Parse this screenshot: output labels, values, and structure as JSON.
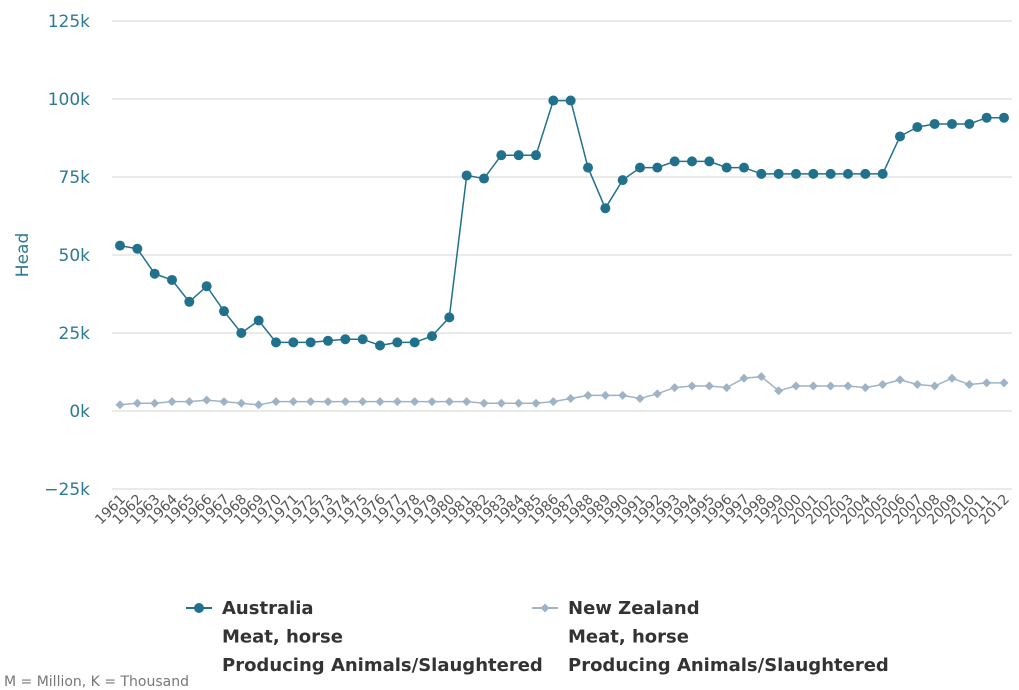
{
  "chart_data": {
    "type": "line",
    "ylabel": "Head",
    "ylim": [
      -25000,
      125000
    ],
    "yticks": [
      {
        "value": -25000,
        "label": "−25k"
      },
      {
        "value": 0,
        "label": "0k"
      },
      {
        "value": 25000,
        "label": "25k"
      },
      {
        "value": 50000,
        "label": "50k"
      },
      {
        "value": 75000,
        "label": "75k"
      },
      {
        "value": 100000,
        "label": "100k"
      },
      {
        "value": 125000,
        "label": "125k"
      }
    ],
    "grid": true,
    "legend_position": "bottom",
    "x": [
      "1961",
      "1962",
      "1963",
      "1964",
      "1965",
      "1966",
      "1967",
      "1968",
      "1969",
      "1970",
      "1971",
      "1972",
      "1973",
      "1974",
      "1975",
      "1976",
      "1977",
      "1978",
      "1979",
      "1980",
      "1981",
      "1982",
      "1983",
      "1984",
      "1985",
      "1986",
      "1987",
      "1988",
      "1989",
      "1990",
      "1991",
      "1992",
      "1993",
      "1994",
      "1995",
      "1996",
      "1997",
      "1998",
      "1999",
      "2000",
      "2001",
      "2002",
      "2003",
      "2004",
      "2005",
      "2006",
      "2007",
      "2008",
      "2009",
      "2010",
      "2011",
      "2012"
    ],
    "series": [
      {
        "name_lines": [
          "Australia",
          "Meat, horse",
          "Producing Animals/Slaughtered"
        ],
        "color": "#21718d",
        "marker": "circle",
        "values": [
          53000,
          52000,
          44000,
          42000,
          35000,
          40000,
          32000,
          25000,
          29000,
          22000,
          22000,
          22000,
          22500,
          23000,
          23000,
          21000,
          22000,
          22000,
          24000,
          30000,
          75500,
          74500,
          82000,
          82000,
          82000,
          99500,
          99500,
          78000,
          65000,
          74000,
          78000,
          78000,
          80000,
          80000,
          80000,
          78000,
          78000,
          76000,
          76000,
          76000,
          76000,
          76000,
          76000,
          76000,
          76000,
          88000,
          91000,
          92000,
          92000,
          92000,
          94000,
          94000
        ]
      },
      {
        "name_lines": [
          "New Zealand",
          "Meat, horse",
          "Producing Animals/Slaughtered"
        ],
        "color": "#9eb4c6",
        "marker": "diamond",
        "values": [
          2000,
          2500,
          2500,
          3000,
          3000,
          3500,
          3000,
          2500,
          2000,
          3000,
          3000,
          3000,
          3000,
          3000,
          3000,
          3000,
          3000,
          3000,
          3000,
          3000,
          3000,
          2500,
          2500,
          2500,
          2500,
          3000,
          4000,
          5000,
          5000,
          5000,
          4000,
          5500,
          7500,
          8000,
          8000,
          7500,
          10500,
          11000,
          6500,
          8000,
          8000,
          8000,
          8000,
          7500,
          8500,
          10000,
          8500,
          8000,
          10500,
          8500,
          9000,
          9000
        ]
      }
    ]
  },
  "footnote": "M = Million, K = Thousand"
}
